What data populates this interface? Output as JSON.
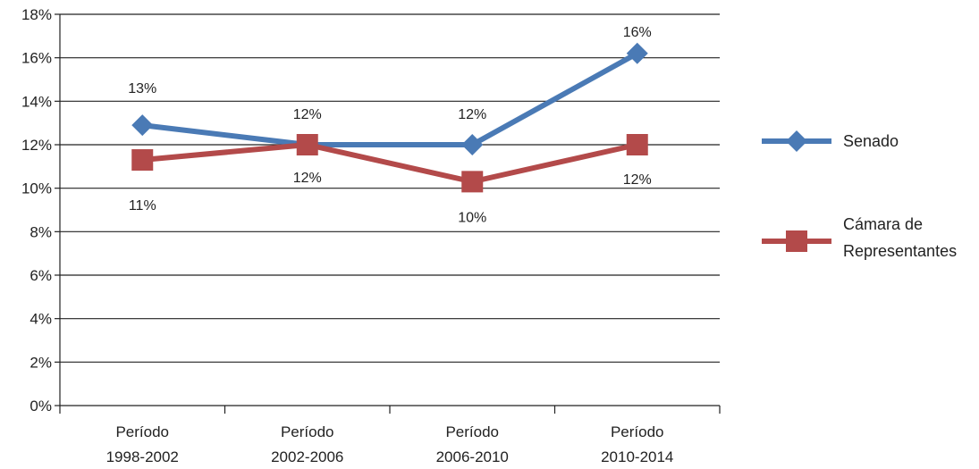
{
  "chart_data": {
    "type": "line",
    "categories": [
      [
        "Período",
        "1998-2002"
      ],
      [
        "Período",
        "2002-2006"
      ],
      [
        "Período",
        "2006-2010"
      ],
      [
        "Período",
        "2010-2014"
      ]
    ],
    "y_ticks": [
      "0%",
      "2%",
      "4%",
      "6%",
      "8%",
      "10%",
      "12%",
      "14%",
      "16%",
      "18%"
    ],
    "ylim": [
      0,
      18
    ],
    "grid": true,
    "legend_position": "right",
    "series": [
      {
        "name": "Senado",
        "values": [
          12.9,
          12.0,
          12.0,
          16.2
        ],
        "labels": [
          "13%",
          "12%",
          "12%",
          "16%"
        ],
        "label_position": "above",
        "color": "#4a7ab5",
        "marker": "diamond"
      },
      {
        "name": "Cámara de Representantes",
        "legend_lines": [
          "Cámara de",
          "Representantes"
        ],
        "values": [
          11.3,
          12.0,
          10.3,
          12.0
        ],
        "labels": [
          "11%",
          "12%",
          "10%",
          "12%"
        ],
        "label_position": "below",
        "color": "#b34a4a",
        "marker": "square"
      }
    ]
  }
}
